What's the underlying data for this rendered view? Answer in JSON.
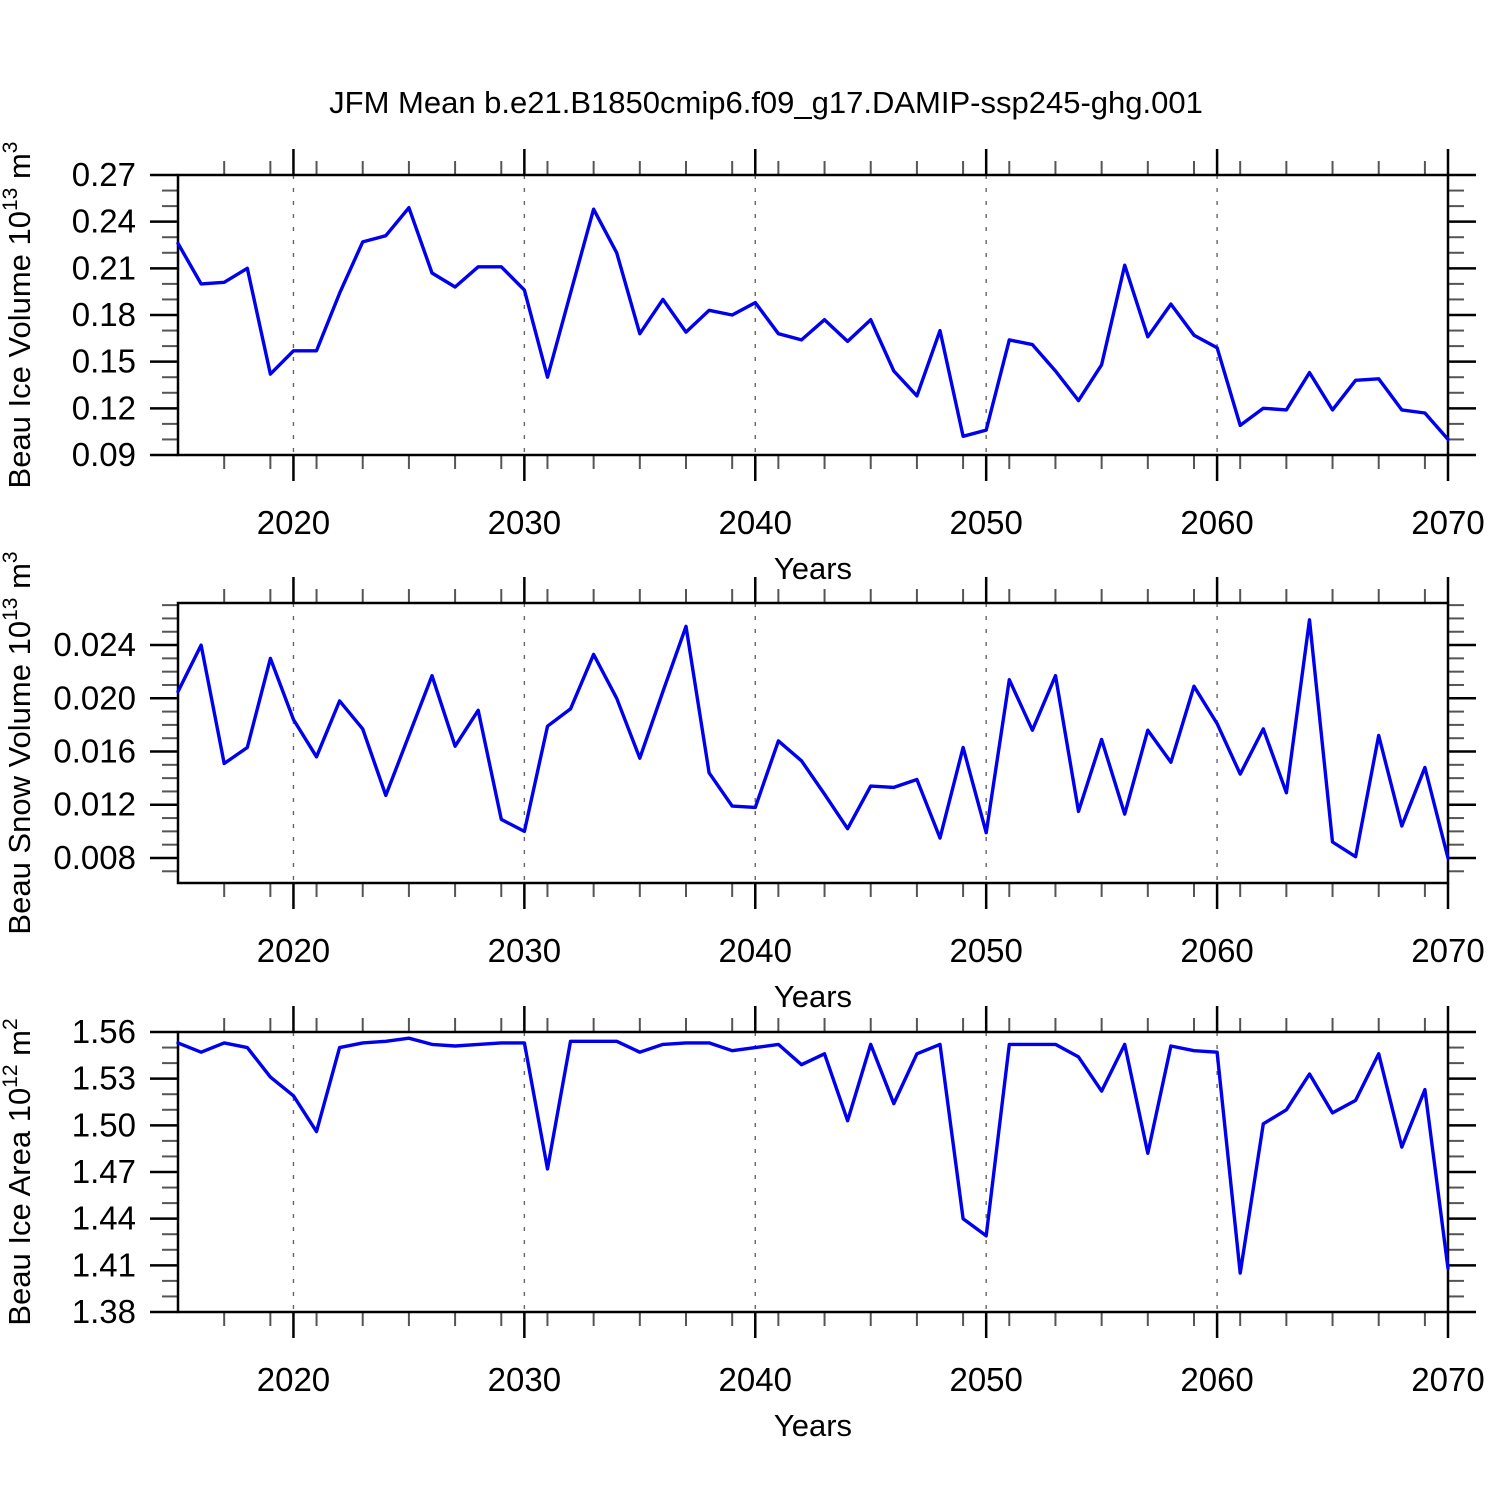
{
  "title": "JFM Mean b.e21.B1850cmip6.f09_g17.DAMIP-ssp245-ghg.001",
  "line_color": "#0000EE",
  "x_axis": {
    "label": "Years",
    "range": [
      2015,
      2070
    ],
    "major_ticks": [
      2020,
      2030,
      2040,
      2050,
      2060,
      2070
    ],
    "tick_labels": [
      "2020",
      "2030",
      "2040",
      "2050",
      "2060",
      "2070"
    ],
    "minor_step_years": 2,
    "dashed_gridlines": [
      2020,
      2030,
      2040,
      2050,
      2060
    ]
  },
  "years": [
    2015,
    2016,
    2017,
    2018,
    2019,
    2020,
    2021,
    2022,
    2023,
    2024,
    2025,
    2026,
    2027,
    2028,
    2029,
    2030,
    2031,
    2032,
    2033,
    2034,
    2035,
    2036,
    2037,
    2038,
    2039,
    2040,
    2041,
    2042,
    2043,
    2044,
    2045,
    2046,
    2047,
    2048,
    2049,
    2050,
    2051,
    2052,
    2053,
    2054,
    2055,
    2056,
    2057,
    2058,
    2059,
    2060,
    2061,
    2062,
    2063,
    2064,
    2065,
    2066,
    2067,
    2068,
    2069,
    2070
  ],
  "chart_data": [
    {
      "id": "beau-ice-volume",
      "type": "line",
      "title": "",
      "xlabel": "Years",
      "ylabel": "Beau Ice Volume 10^13 m^3",
      "ylabel_parts": [
        [
          "Beau Ice Volume 10",
          0
        ],
        [
          "13",
          1
        ],
        [
          " m",
          0
        ],
        [
          "3",
          1
        ]
      ],
      "ylim": [
        0.09,
        0.27
      ],
      "ytick_values": [
        0.27,
        0.24,
        0.21,
        0.18,
        0.15,
        0.12,
        0.09
      ],
      "ytick_labels": [
        "0.27",
        "0.24",
        "0.21",
        "0.18",
        "0.15",
        "0.12",
        "0.09"
      ],
      "y_minor_step": 0.01,
      "grid": "dashed-vertical-decades",
      "legend": "none",
      "values": [
        0.226,
        0.2,
        0.201,
        0.21,
        0.142,
        0.157,
        0.157,
        0.194,
        0.227,
        0.231,
        0.249,
        0.207,
        0.198,
        0.211,
        0.211,
        0.196,
        0.14,
        0.194,
        0.248,
        0.22,
        0.168,
        0.19,
        0.169,
        0.183,
        0.18,
        0.188,
        0.168,
        0.164,
        0.177,
        0.163,
        0.177,
        0.144,
        0.128,
        0.17,
        0.102,
        0.106,
        0.164,
        0.161,
        0.144,
        0.125,
        0.148,
        0.212,
        0.166,
        0.187,
        0.167,
        0.159,
        0.109,
        0.12,
        0.119,
        0.143,
        0.119,
        0.138,
        0.139,
        0.119,
        0.117,
        0.1
      ]
    },
    {
      "id": "beau-snow-volume",
      "type": "line",
      "title": "",
      "xlabel": "Years",
      "ylabel": "Beau Snow Volume 10^13 m^3",
      "ylabel_parts": [
        [
          "Beau Snow Volume 10",
          0
        ],
        [
          "13",
          1
        ],
        [
          " m",
          0
        ],
        [
          "3",
          1
        ]
      ],
      "ylim": [
        0.00612,
        0.02716
      ],
      "ytick_values": [
        0.024,
        0.02,
        0.016,
        0.012,
        0.008
      ],
      "ytick_labels": [
        "0.024",
        "0.020",
        "0.016",
        "0.012",
        "0.008"
      ],
      "y_minor_step": 0.001,
      "grid": "dashed-vertical-decades",
      "legend": "none",
      "values": [
        0.0205,
        0.024,
        0.0151,
        0.0163,
        0.023,
        0.0184,
        0.0156,
        0.0198,
        0.0177,
        0.0127,
        0.0172,
        0.0217,
        0.0164,
        0.0191,
        0.0109,
        0.01,
        0.0179,
        0.0192,
        0.0233,
        0.02,
        0.0155,
        0.0205,
        0.0254,
        0.0144,
        0.0119,
        0.0118,
        0.0168,
        0.0153,
        0.0128,
        0.0102,
        0.0134,
        0.0133,
        0.0139,
        0.0095,
        0.0163,
        0.0099,
        0.0214,
        0.0176,
        0.0217,
        0.0115,
        0.0169,
        0.0113,
        0.0176,
        0.0152,
        0.0209,
        0.0181,
        0.0143,
        0.0177,
        0.0129,
        0.0259,
        0.0092,
        0.0081,
        0.0172,
        0.0104,
        0.0148,
        0.008
      ]
    },
    {
      "id": "beau-ice-area",
      "type": "line",
      "title": "",
      "xlabel": "Years",
      "ylabel": "Beau Ice Area 10^12 m^2",
      "ylabel_parts": [
        [
          "Beau Ice Area 10",
          0
        ],
        [
          "12",
          1
        ],
        [
          " m",
          0
        ],
        [
          "2",
          1
        ]
      ],
      "ylim": [
        1.38,
        1.56
      ],
      "ytick_values": [
        1.56,
        1.53,
        1.5,
        1.47,
        1.44,
        1.41,
        1.38
      ],
      "ytick_labels": [
        "1.56",
        "1.53",
        "1.50",
        "1.47",
        "1.44",
        "1.41",
        "1.38"
      ],
      "y_minor_step": 0.01,
      "grid": "dashed-vertical-decades",
      "legend": "none",
      "values": [
        1.553,
        1.547,
        1.553,
        1.55,
        1.531,
        1.519,
        1.496,
        1.55,
        1.553,
        1.554,
        1.556,
        1.552,
        1.551,
        1.552,
        1.553,
        1.553,
        1.472,
        1.554,
        1.554,
        1.554,
        1.547,
        1.552,
        1.553,
        1.553,
        1.548,
        1.55,
        1.552,
        1.539,
        1.546,
        1.503,
        1.552,
        1.514,
        1.546,
        1.552,
        1.44,
        1.429,
        1.552,
        1.552,
        1.552,
        1.544,
        1.522,
        1.552,
        1.482,
        1.551,
        1.548,
        1.547,
        1.405,
        1.501,
        1.51,
        1.533,
        1.508,
        1.516,
        1.546,
        1.486,
        1.523,
        1.408
      ]
    }
  ]
}
